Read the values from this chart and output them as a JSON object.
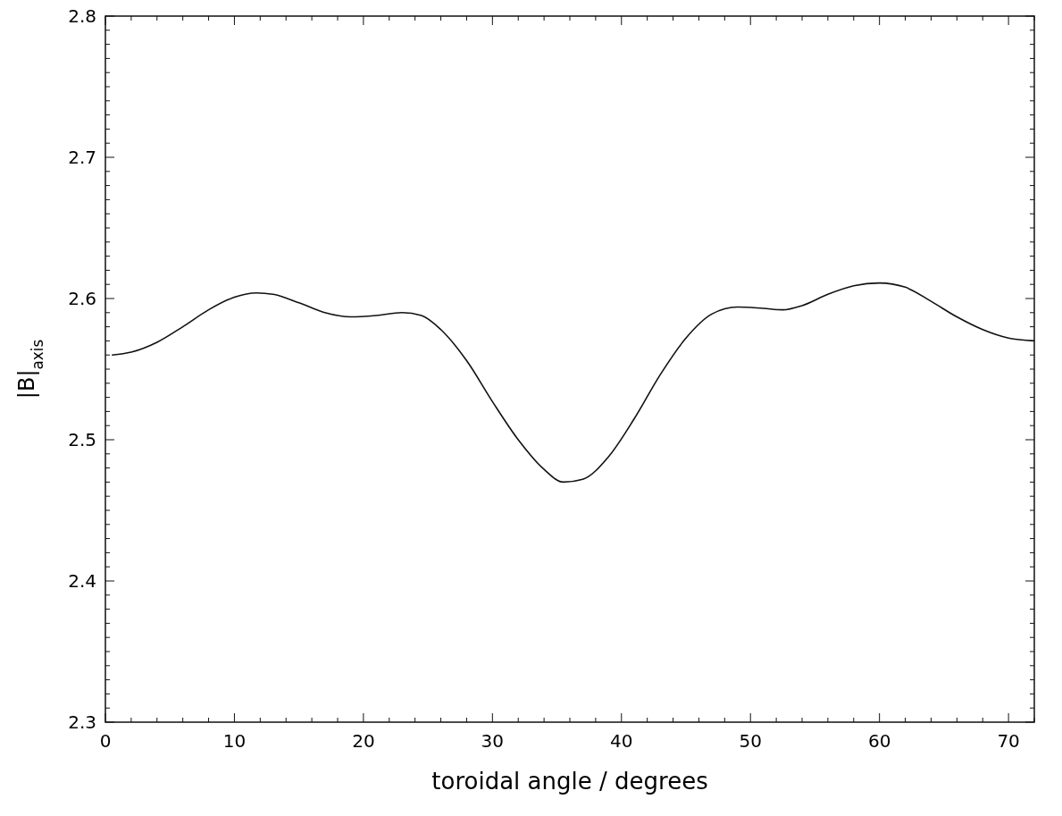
{
  "chart_data": {
    "type": "line",
    "xlabel": "toroidal angle / degrees",
    "ylabel": "|B|$_{axis}$",
    "xlim": [
      0,
      72
    ],
    "ylim": [
      2.3,
      2.8
    ],
    "xticks": [
      0,
      10,
      20,
      30,
      40,
      50,
      60,
      70
    ],
    "yticks": [
      2.3,
      2.4,
      2.5,
      2.6,
      2.7,
      2.8
    ],
    "grid": false,
    "marker": "none",
    "line_style": "solid",
    "series": [
      {
        "color": "#111111",
        "x": [
          0.5,
          2,
          4,
          6,
          8,
          10,
          11.7,
          13,
          15,
          17,
          19,
          21,
          23,
          24.5,
          26,
          28,
          30,
          32,
          34,
          35.5,
          37,
          39,
          41,
          43,
          45,
          47,
          49,
          51,
          52.5,
          54,
          56,
          58,
          60,
          62,
          64,
          66,
          68,
          70,
          72
        ],
        "values": [
          2.56,
          2.562,
          2.569,
          2.58,
          2.592,
          2.601,
          2.604,
          2.603,
          2.597,
          2.59,
          2.587,
          2.588,
          2.59,
          2.588,
          2.578,
          2.556,
          2.527,
          2.5,
          2.479,
          2.47,
          2.472,
          2.488,
          2.515,
          2.546,
          2.572,
          2.589,
          2.594,
          2.593,
          2.592,
          2.595,
          2.603,
          2.609,
          2.611,
          2.608,
          2.598,
          2.587,
          2.578,
          2.572,
          2.57
        ]
      }
    ]
  }
}
